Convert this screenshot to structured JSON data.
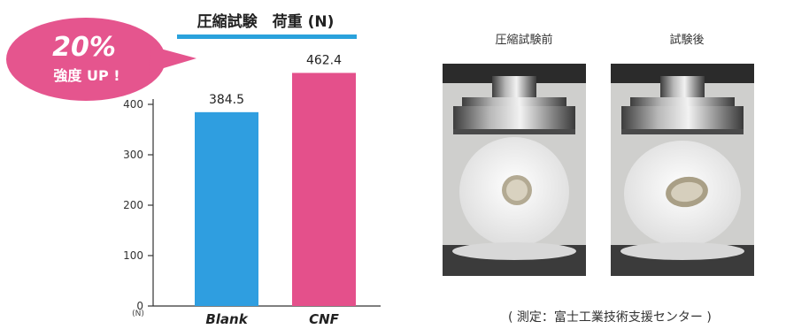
{
  "chart_data": {
    "type": "bar",
    "title": "圧縮試験　荷重 (N)",
    "categories": [
      "Blank",
      "CNF"
    ],
    "values": [
      384.5,
      462.4
    ],
    "value_labels": [
      "384.5",
      "462.4"
    ],
    "yticks": [
      "0",
      "100",
      "200",
      "300",
      "400"
    ],
    "unit_label": "(N)",
    "ylim": [
      0,
      500
    ],
    "colors": {
      "Blank": "#2f9ee0",
      "CNF": "#e4508b"
    },
    "title_underline_color": "#2aa2dc",
    "callout": {
      "line1": "20%",
      "line2": "強度 UP !",
      "color": "#e5558e"
    }
  },
  "photos": {
    "before_label": "圧縮試験前",
    "after_label": "試験後"
  },
  "note": "( 測定：富士工業技術支援センター )"
}
